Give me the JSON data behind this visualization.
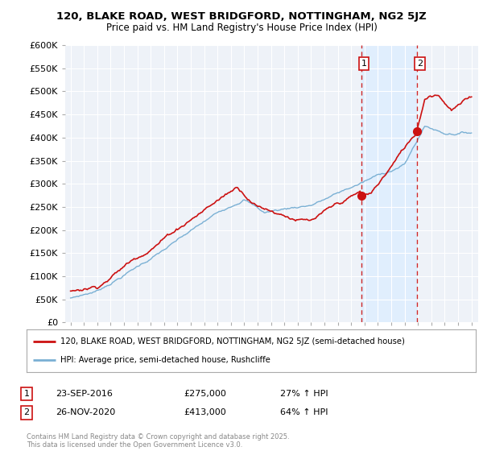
{
  "title1": "120, BLAKE ROAD, WEST BRIDGFORD, NOTTINGHAM, NG2 5JZ",
  "title2": "Price paid vs. HM Land Registry's House Price Index (HPI)",
  "background_color": "#ffffff",
  "plot_bg_color": "#eef2f8",
  "grid_color": "#ffffff",
  "line1_color": "#cc1111",
  "line2_color": "#7ab0d4",
  "dashed_color": "#cc1111",
  "shade_color": "#ddeeff",
  "legend1": "120, BLAKE ROAD, WEST BRIDGFORD, NOTTINGHAM, NG2 5JZ (semi-detached house)",
  "legend2": "HPI: Average price, semi-detached house, Rushcliffe",
  "note1_label": "1",
  "note1_date": "23-SEP-2016",
  "note1_price": "£275,000",
  "note1_hpi": "27% ↑ HPI",
  "note2_label": "2",
  "note2_date": "26-NOV-2020",
  "note2_price": "£413,000",
  "note2_hpi": "64% ↑ HPI",
  "copyright": "Contains HM Land Registry data © Crown copyright and database right 2025.\nThis data is licensed under the Open Government Licence v3.0.",
  "ylim": [
    0,
    600000
  ],
  "yticks": [
    0,
    50000,
    100000,
    150000,
    200000,
    250000,
    300000,
    350000,
    400000,
    450000,
    500000,
    550000,
    600000
  ],
  "start_year": 1995,
  "end_year": 2025,
  "year1": 2016.75,
  "year2": 2020.917,
  "price1": 275000,
  "price2": 413000
}
